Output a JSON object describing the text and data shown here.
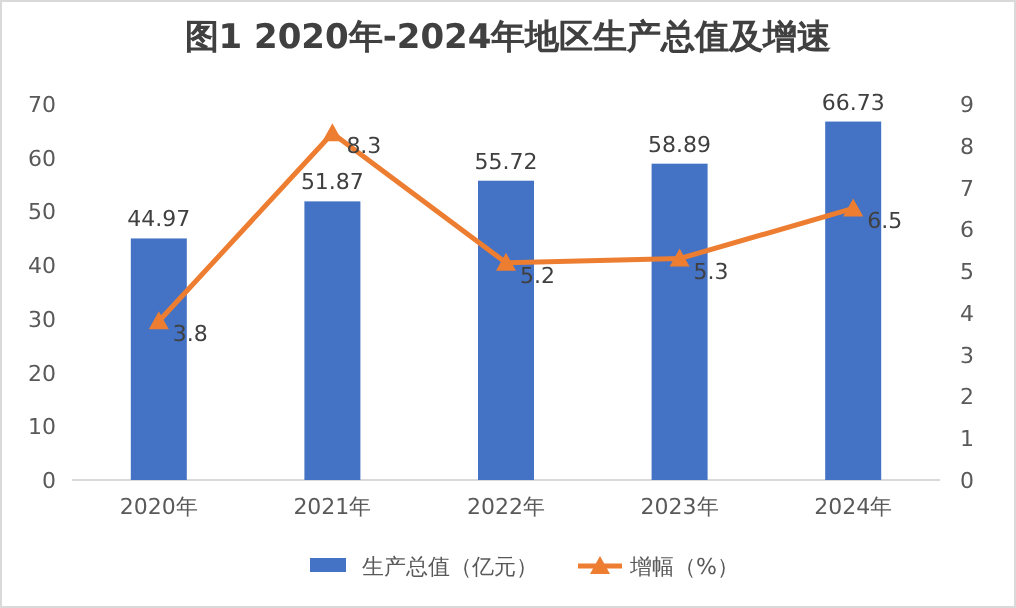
{
  "chart_data": {
    "type": "bar",
    "title": "图1  2020年-2024年地区生产总值及增速",
    "categories": [
      "2020年",
      "2021年",
      "2022年",
      "2023年",
      "2024年"
    ],
    "series": [
      {
        "name": "生产总值（亿元）",
        "color": "#4472c4",
        "values": [
          44.97,
          51.87,
          55.72,
          58.89,
          66.73
        ]
      },
      {
        "name": "增幅（%）",
        "type": "line",
        "axis": "y2",
        "color": "#ed7d31",
        "marker": "triangle",
        "values": [
          3.8,
          8.3,
          5.2,
          5.3,
          6.5
        ]
      }
    ],
    "ylim": [
      0,
      70
    ],
    "yticks": [
      0,
      10,
      20,
      30,
      40,
      50,
      60,
      70
    ],
    "y2lim": [
      0,
      9
    ],
    "y2ticks": [
      0,
      1,
      2,
      3,
      4,
      5,
      6,
      7,
      8,
      9
    ],
    "data_labels": true,
    "legend": "bottom"
  }
}
